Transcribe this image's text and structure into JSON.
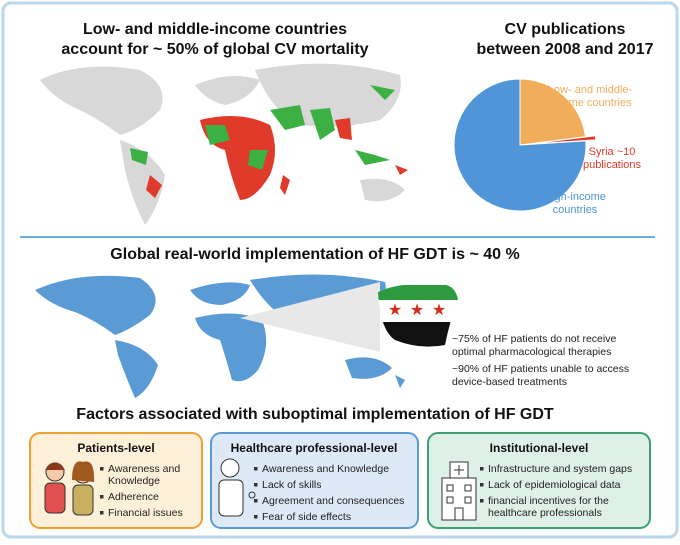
{
  "header": {
    "left_title": [
      "Low- and middle-income countries",
      "account for ~ 50% of global CV mortality"
    ],
    "right_title": [
      "CV publications",
      "between 2008 and 2017"
    ]
  },
  "pie": {
    "slices": [
      {
        "label": [
          "Low- and middle-",
          "income countries"
        ],
        "value": 23,
        "color": "#f2ad5b"
      },
      {
        "label": [
          "Syria ~10",
          "publications"
        ],
        "value": 1,
        "color": "#e03a2a"
      },
      {
        "label": [
          "High-income",
          "countries"
        ],
        "value": 76,
        "color": "#4f95d8"
      }
    ]
  },
  "middle": {
    "title": "Global real-world implementation of HF GDT is ~ 40 %",
    "notes": [
      [
        "~75% of HF patients do not receive",
        "optimal pharmacological therapies"
      ],
      [
        "~90% of HF patients unable to access",
        "device-based treatments"
      ]
    ]
  },
  "factors": {
    "title": "Factors associated with suboptimal implementation of HF GDT",
    "boxes": [
      {
        "title": "Patients-level",
        "items": [
          [
            "Awareness and",
            "Knowledge"
          ],
          [
            "Adherence"
          ],
          [
            "Financial issues"
          ]
        ]
      },
      {
        "title": "Healthcare professional-level",
        "items": [
          [
            "Awareness and Knowledge"
          ],
          [
            "Lack of skills"
          ],
          [
            "Agreement and consequences"
          ],
          [
            "Fear of side effects"
          ]
        ]
      },
      {
        "title": "Institutional-level",
        "items": [
          [
            "Infrastructure and system gaps"
          ],
          [
            "Lack of epidemiological data"
          ],
          [
            "financial incentives for the",
            "healthcare professionals"
          ]
        ]
      }
    ]
  }
}
